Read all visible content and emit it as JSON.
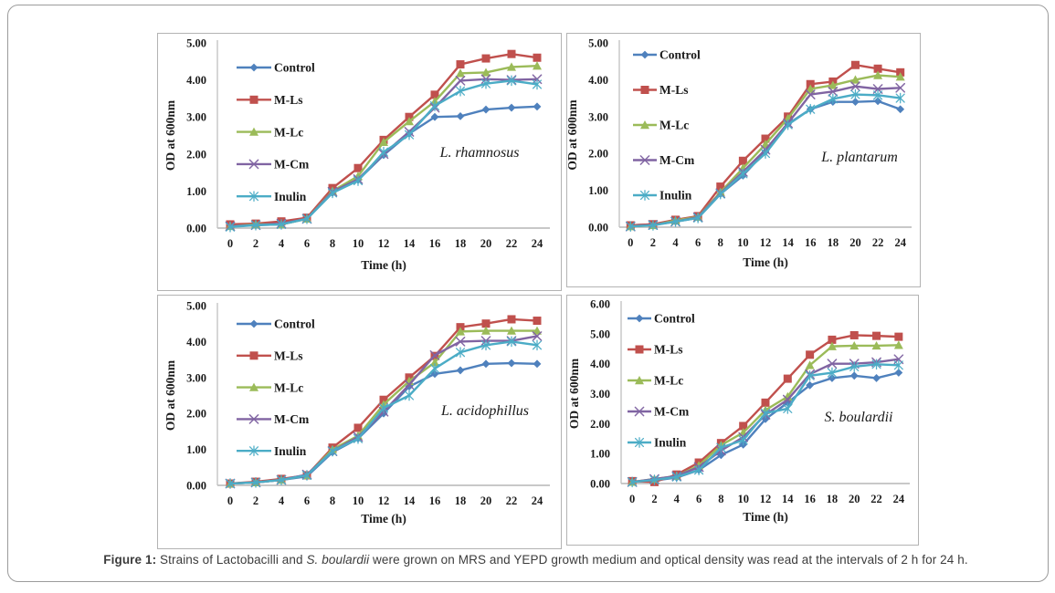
{
  "caption": {
    "segments": [
      {
        "text": "Figure 1:",
        "style": "bold"
      },
      {
        "text": " Strains of Lactobacilli and ",
        "style": "normal"
      },
      {
        "text": "S. boulardii",
        "style": "italic"
      },
      {
        "text": " were grown on MRS and YEPD growth medium and optical density was read at the intervals of 2 h for 24 h.",
        "style": "normal"
      }
    ]
  },
  "palette": {
    "control_blue": "#4F81BD",
    "mls_red": "#C0504D",
    "mlc_green": "#9BBB59",
    "mcm_purple": "#8064A2",
    "inulin_cyan": "#4BACC6",
    "axis_gray": "#c0c0c0",
    "text_black": "#1a1a1a"
  },
  "chart_data": [
    {
      "type": "line",
      "annotation": "L. rhamnosus",
      "xlabel": "Time  (h)",
      "ylabel": "OD  at 600nm",
      "x": [
        0,
        2,
        4,
        6,
        8,
        10,
        12,
        14,
        16,
        18,
        20,
        22,
        24
      ],
      "ylim": [
        0,
        5
      ],
      "yticks": [
        "0.00",
        "1.00",
        "2.00",
        "3.00",
        "4.00",
        "5.00"
      ],
      "legend_position": "inside-upper-left",
      "grid": false,
      "series": [
        {
          "name": "Control",
          "color": "#4F81BD",
          "marker": "diamond",
          "values": [
            0.05,
            0.08,
            0.1,
            0.25,
            0.95,
            1.3,
            1.97,
            2.55,
            3.0,
            3.02,
            3.2,
            3.25,
            3.28
          ]
        },
        {
          "name": "M-Ls",
          "color": "#C0504D",
          "marker": "square",
          "values": [
            0.1,
            0.12,
            0.18,
            0.28,
            1.08,
            1.62,
            2.38,
            3.0,
            3.6,
            4.42,
            4.58,
            4.7,
            4.6
          ]
        },
        {
          "name": "M-Lc",
          "color": "#9BBB59",
          "marker": "triangle",
          "values": [
            0.05,
            0.1,
            0.1,
            0.25,
            1.0,
            1.4,
            2.32,
            2.88,
            3.42,
            4.18,
            4.2,
            4.35,
            4.38
          ]
        },
        {
          "name": "M-Cm",
          "color": "#8064A2",
          "marker": "x",
          "values": [
            0.05,
            0.08,
            0.12,
            0.25,
            0.98,
            1.32,
            2.0,
            2.6,
            3.25,
            3.98,
            4.02,
            4.0,
            4.02
          ]
        },
        {
          "name": "Inulin",
          "color": "#4BACC6",
          "marker": "asterisk",
          "values": [
            0.03,
            0.08,
            0.1,
            0.25,
            0.95,
            1.28,
            2.05,
            2.52,
            3.3,
            3.7,
            3.9,
            3.98,
            3.88
          ]
        }
      ]
    },
    {
      "type": "line",
      "annotation": "L. plantarum",
      "xlabel": "Time (h)",
      "ylabel": "OD at 600nm",
      "x": [
        0,
        2,
        4,
        6,
        8,
        10,
        12,
        14,
        16,
        18,
        20,
        22,
        24
      ],
      "ylim": [
        0,
        5
      ],
      "yticks": [
        "0.00",
        "1.00",
        "2.00",
        "3.00",
        "4.00",
        "5.00"
      ],
      "legend_position": "inside-upper-left",
      "grid": false,
      "series": [
        {
          "name": "Control",
          "color": "#4F81BD",
          "marker": "diamond",
          "values": [
            0.05,
            0.08,
            0.15,
            0.25,
            0.9,
            1.4,
            2.05,
            2.8,
            3.2,
            3.4,
            3.4,
            3.42,
            3.2
          ]
        },
        {
          "name": "M-Ls",
          "color": "#C0504D",
          "marker": "square",
          "values": [
            0.05,
            0.08,
            0.2,
            0.3,
            1.1,
            1.8,
            2.4,
            3.0,
            3.88,
            3.95,
            4.4,
            4.3,
            4.2
          ]
        },
        {
          "name": "M-Lc",
          "color": "#9BBB59",
          "marker": "triangle",
          "values": [
            0.02,
            0.05,
            0.18,
            0.28,
            0.95,
            1.6,
            2.25,
            2.95,
            3.75,
            3.85,
            4.0,
            4.12,
            4.08
          ]
        },
        {
          "name": "M-Cm",
          "color": "#8064A2",
          "marker": "x",
          "values": [
            0.02,
            0.06,
            0.15,
            0.27,
            0.92,
            1.5,
            2.1,
            2.82,
            3.6,
            3.68,
            3.82,
            3.75,
            3.78
          ]
        },
        {
          "name": "Inulin",
          "color": "#4BACC6",
          "marker": "asterisk",
          "values": [
            0.02,
            0.05,
            0.15,
            0.25,
            0.9,
            1.45,
            2.0,
            2.78,
            3.2,
            3.48,
            3.6,
            3.58,
            3.5
          ]
        }
      ]
    },
    {
      "type": "line",
      "annotation": "L. acidophillus",
      "xlabel": "Time (h)",
      "ylabel": "OD at 600nm",
      "x": [
        0,
        2,
        4,
        6,
        8,
        10,
        12,
        14,
        16,
        18,
        20,
        22,
        24
      ],
      "ylim": [
        0,
        5
      ],
      "yticks": [
        "0.00",
        "1.00",
        "2.00",
        "3.00",
        "4.00",
        "5.00"
      ],
      "legend_position": "inside-upper-left",
      "grid": false,
      "series": [
        {
          "name": "Control",
          "color": "#4F81BD",
          "marker": "diamond",
          "values": [
            0.05,
            0.08,
            0.15,
            0.25,
            0.92,
            1.3,
            2.0,
            2.75,
            3.1,
            3.2,
            3.38,
            3.4,
            3.38
          ]
        },
        {
          "name": "M-Ls",
          "color": "#C0504D",
          "marker": "square",
          "values": [
            0.05,
            0.1,
            0.18,
            0.28,
            1.05,
            1.6,
            2.38,
            3.0,
            3.6,
            4.4,
            4.5,
            4.62,
            4.58
          ]
        },
        {
          "name": "M-Lc",
          "color": "#9BBB59",
          "marker": "triangle",
          "values": [
            0.05,
            0.08,
            0.15,
            0.28,
            1.0,
            1.38,
            2.25,
            2.9,
            3.42,
            4.28,
            4.3,
            4.3,
            4.3
          ]
        },
        {
          "name": "M-Cm",
          "color": "#8064A2",
          "marker": "x",
          "values": [
            0.05,
            0.08,
            0.15,
            0.3,
            0.95,
            1.35,
            2.05,
            2.8,
            3.62,
            4.0,
            4.02,
            4.02,
            4.15
          ]
        },
        {
          "name": "Inulin",
          "color": "#4BACC6",
          "marker": "asterisk",
          "values": [
            0.05,
            0.08,
            0.15,
            0.28,
            0.95,
            1.3,
            2.15,
            2.5,
            3.25,
            3.7,
            3.9,
            4.0,
            3.9
          ]
        }
      ]
    },
    {
      "type": "line",
      "annotation": "S. boulardii",
      "xlabel": "Time (h)",
      "ylabel": "OD at 600nm",
      "x": [
        0,
        2,
        4,
        6,
        8,
        10,
        12,
        14,
        16,
        18,
        20,
        22,
        24
      ],
      "ylim": [
        0,
        6
      ],
      "yticks": [
        "0.00",
        "1.00",
        "2.00",
        "3.00",
        "4.00",
        "5.00",
        "6.00"
      ],
      "legend_position": "inside-upper-left",
      "grid": false,
      "series": [
        {
          "name": "Control",
          "color": "#4F81BD",
          "marker": "diamond",
          "values": [
            0.05,
            0.1,
            0.2,
            0.45,
            0.95,
            1.3,
            2.15,
            2.7,
            3.28,
            3.52,
            3.6,
            3.52,
            3.7
          ]
        },
        {
          "name": "M-Ls",
          "color": "#C0504D",
          "marker": "square",
          "values": [
            0.08,
            0.05,
            0.3,
            0.7,
            1.35,
            1.92,
            2.7,
            3.5,
            4.3,
            4.8,
            4.95,
            4.93,
            4.9
          ]
        },
        {
          "name": "M-Lc",
          "color": "#9BBB59",
          "marker": "triangle",
          "values": [
            0.05,
            0.15,
            0.25,
            0.6,
            1.28,
            1.7,
            2.45,
            2.9,
            3.95,
            4.58,
            4.6,
            4.6,
            4.62
          ]
        },
        {
          "name": "M-Cm",
          "color": "#8064A2",
          "marker": "x",
          "values": [
            0.05,
            0.15,
            0.25,
            0.55,
            1.1,
            1.55,
            2.3,
            2.8,
            3.65,
            4.0,
            4.0,
            4.05,
            4.15
          ]
        },
        {
          "name": "Inulin",
          "color": "#4BACC6",
          "marker": "asterisk",
          "values": [
            0.05,
            0.12,
            0.22,
            0.45,
            1.2,
            1.45,
            2.35,
            2.5,
            3.6,
            3.7,
            3.9,
            3.98,
            3.95
          ]
        }
      ]
    }
  ]
}
